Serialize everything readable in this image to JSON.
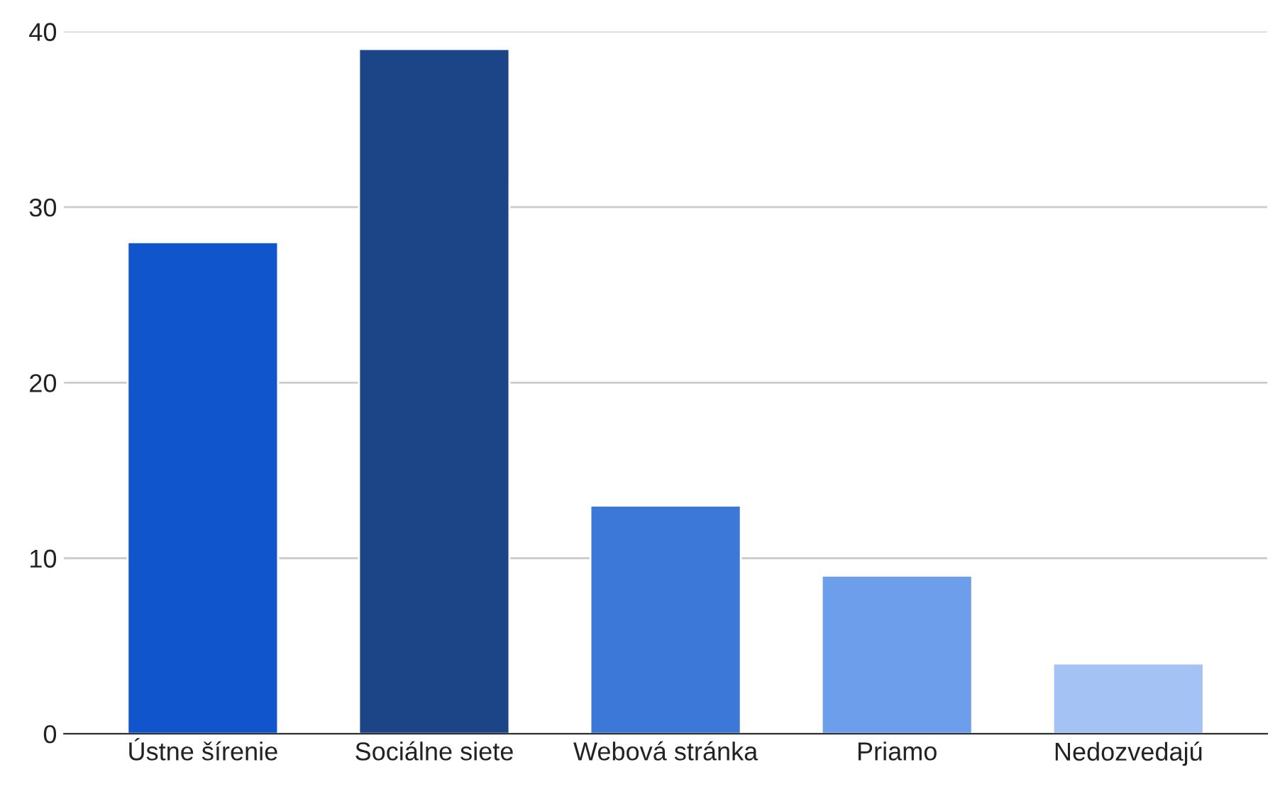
{
  "chart_data": {
    "type": "bar",
    "categories": [
      "Ústne šírenie",
      "Sociálne siete",
      "Webová stránka",
      "Priamo",
      "Nedozvedajú"
    ],
    "values": [
      28,
      39,
      13,
      9,
      4
    ],
    "colors": [
      "#1155cc",
      "#1c4587",
      "#3c78d8",
      "#6d9eeb",
      "#a4c2f4"
    ],
    "ylim": [
      0,
      40
    ],
    "yticks": [
      0,
      10,
      20,
      30,
      40
    ],
    "grid": "y",
    "legend": false
  }
}
